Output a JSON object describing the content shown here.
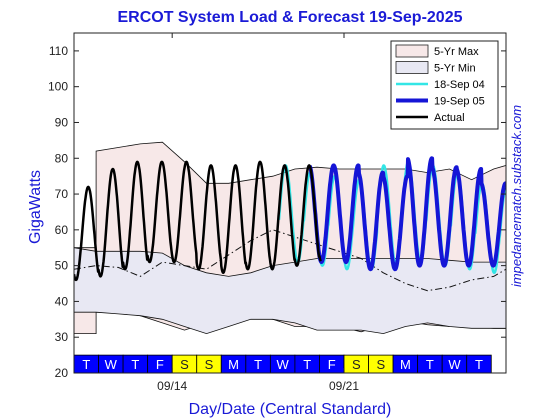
{
  "chart_data": {
    "type": "line",
    "title": "ERCOT System Load & Forecast 19-Sep-2025",
    "xlabel": "Day/Date (Central Standard)",
    "ylabel": "GigaWatts",
    "ylim": [
      20,
      115
    ],
    "yticks": [
      20,
      30,
      40,
      50,
      60,
      70,
      80,
      90,
      100,
      110
    ],
    "xlim": [
      0,
      17.6
    ],
    "xticks": [
      {
        "x": 4,
        "label": "09/14"
      },
      {
        "x": 11,
        "label": "09/21"
      }
    ],
    "grid": false,
    "legend_position": "top-right",
    "watermark": "impedancematch.substack.com",
    "day_strip": {
      "days": [
        "T",
        "W",
        "T",
        "F",
        "S",
        "S",
        "M",
        "T",
        "W",
        "T",
        "F",
        "S",
        "S",
        "M",
        "T",
        "W",
        "T"
      ],
      "weekend_color": "#ffff00",
      "weekday_color": "#0000ff"
    },
    "colors": {
      "band_max": "#f7e8e8",
      "band_min": "#e8e8f3",
      "forecast_prev": "#33e6e6",
      "forecast_curr": "#1515d6",
      "actual": "#000000"
    },
    "series": [
      {
        "name": "5-Yr Max",
        "kind": "band",
        "x": [
          0,
          0.9,
          0.9,
          1.8,
          2.7,
          3.6,
          4.5,
          5.4,
          6.3,
          7.2,
          8.1,
          9.0,
          9.9,
          10.8,
          11.7,
          12.6,
          13.5,
          14.4,
          15.3,
          16.2,
          17.1,
          17.6
        ],
        "upper": [
          55,
          55,
          82,
          83,
          84,
          84.5,
          79,
          73,
          73,
          74,
          75,
          77,
          77.5,
          77,
          77,
          77,
          77,
          76,
          77,
          74,
          77,
          78
        ],
        "lower": [
          31,
          31,
          37,
          37,
          36,
          34,
          32,
          34,
          36,
          36,
          35,
          33,
          33,
          33,
          31.5,
          33.5,
          34.5,
          33.5,
          33,
          33,
          32.5,
          32.5
        ]
      },
      {
        "name": "5-Yr Min",
        "kind": "band",
        "x": [
          0,
          0.9,
          1.8,
          2.7,
          3.6,
          4.5,
          5.4,
          6.3,
          7.2,
          8.1,
          9.0,
          9.9,
          10.8,
          11.7,
          12.6,
          13.5,
          14.4,
          15.3,
          16.2,
          17.1,
          17.6
        ],
        "upper": [
          55,
          54,
          54,
          54,
          53.5,
          50,
          48,
          47,
          48,
          50,
          51,
          52,
          52,
          52,
          52,
          52,
          52,
          51.5,
          51,
          51,
          51
        ],
        "lower": [
          37,
          37,
          36.5,
          36,
          35,
          33,
          31,
          33,
          35,
          35,
          34,
          32,
          32,
          32,
          31,
          33,
          34,
          33,
          32.5,
          32.5,
          32.5
        ]
      },
      {
        "name": "dash-dot reference",
        "kind": "line",
        "style": "dashdot",
        "x": [
          0,
          0.9,
          1.8,
          2.7,
          3.6,
          4.5,
          5.4,
          6.3,
          7.2,
          8.1,
          9.0,
          9.9,
          10.8,
          11.7,
          12.6,
          13.5,
          14.4,
          15.3,
          16.2,
          17.1,
          17.6
        ],
        "y": [
          49,
          50,
          49.5,
          47,
          51,
          50,
          49,
          53,
          57,
          60,
          58,
          56,
          54,
          52,
          48,
          45,
          43,
          44,
          46,
          47,
          49
        ]
      },
      {
        "name": "18-Sep 04",
        "kind": "sine",
        "x_start": 8.35,
        "x_end": 17.6,
        "phase_offset": 0.04,
        "peaks": [
          78,
          76,
          75,
          74,
          78,
          79,
          78,
          76,
          73,
          72
        ],
        "troughs": [
          51,
          50,
          49,
          49,
          50,
          51,
          50,
          49,
          48,
          48
        ]
      },
      {
        "name": "19-Sep 05",
        "kind": "sine",
        "x_start": 9.6,
        "x_end": 17.6,
        "phase_offset": 0,
        "peaks": [
          78,
          78,
          76,
          75,
          80,
          77.5,
          77,
          73,
          72
        ],
        "troughs": [
          51,
          51,
          49,
          49,
          50,
          50,
          50,
          50,
          50
        ]
      },
      {
        "name": "Actual",
        "kind": "sine",
        "x_start": 0,
        "x_end": 10.05,
        "phase_offset": 0,
        "peaks": [
          72,
          77,
          79,
          79,
          79,
          78,
          78,
          79,
          78,
          78,
          77
        ],
        "troughs": [
          46,
          47,
          49,
          51,
          51,
          49,
          48,
          49,
          49,
          50,
          51
        ]
      }
    ]
  }
}
